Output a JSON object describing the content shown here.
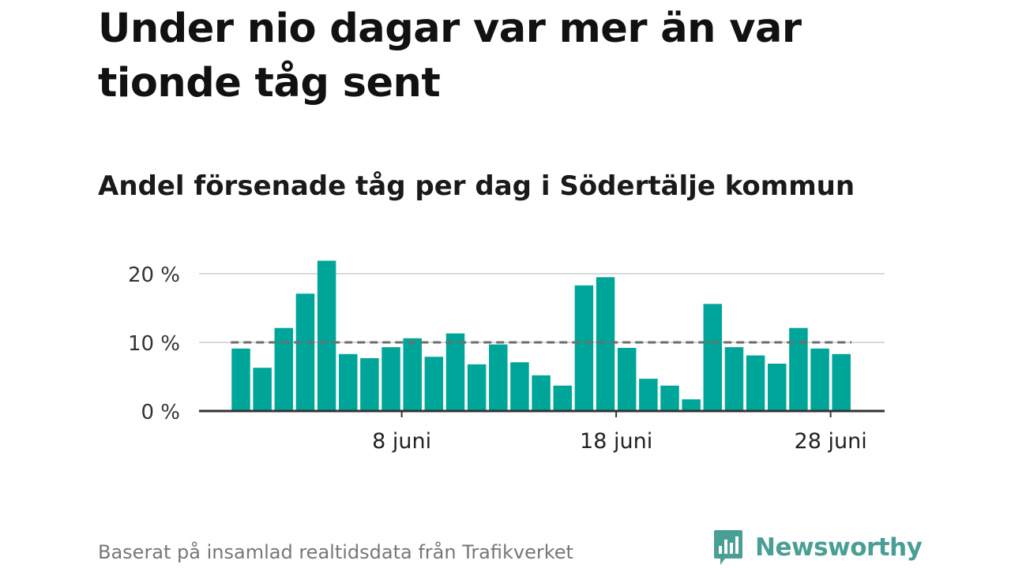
{
  "headline": "Under nio dagar var mer än var tionde tåg sent",
  "subtitle": "Andel försenade tåg per dag i Södertälje kommun",
  "source": "Baserat på insamlad realtidsdata från Trafikverket",
  "brand": {
    "name": "Newsworthy",
    "icon": "newsworthy-logo-icon",
    "color": "#4a9f95"
  },
  "chart_data": {
    "type": "bar",
    "title": "Andel försenade tåg per dag i Södertälje kommun",
    "xlabel": "",
    "ylabel": "",
    "x_unit": "juni",
    "days": [
      1,
      2,
      3,
      4,
      5,
      6,
      7,
      8,
      9,
      10,
      11,
      12,
      13,
      14,
      15,
      16,
      17,
      18,
      19,
      20,
      21,
      22,
      23,
      24,
      25,
      26,
      27,
      28,
      29
    ],
    "values": [
      9.1,
      6.3,
      12.1,
      17.1,
      21.9,
      8.3,
      7.7,
      9.3,
      10.6,
      7.9,
      11.3,
      6.8,
      9.7,
      7.1,
      5.2,
      3.7,
      18.3,
      19.5,
      9.2,
      4.7,
      3.7,
      1.7,
      15.6,
      9.3,
      8.1,
      6.9,
      12.1,
      9.1,
      8.3
    ],
    "reference_line": {
      "value": 10,
      "style": "dashed"
    },
    "ylim": [
      0,
      22
    ],
    "y_ticks": [
      0,
      10,
      20
    ],
    "y_tick_labels": [
      "0 %",
      "10 %",
      "20 %"
    ],
    "x_ticks": [
      8,
      18,
      28
    ],
    "x_tick_labels": [
      "8 juni",
      "18 juni",
      "28 juni"
    ],
    "bar_color": "#00a59a",
    "grid": true
  }
}
